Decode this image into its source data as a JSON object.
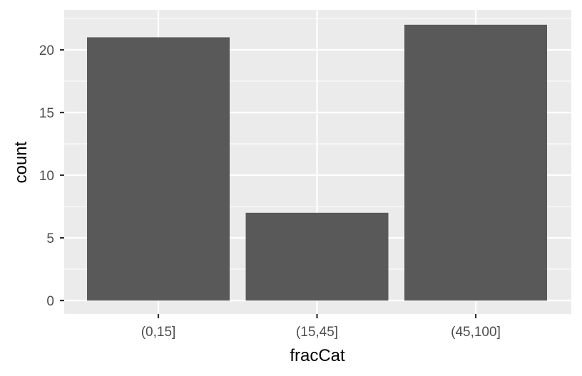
{
  "chart_data": {
    "type": "bar",
    "categories": [
      "(0,15]",
      "(15,45]",
      "(45,100]"
    ],
    "values": [
      21,
      7,
      22
    ],
    "xlabel": "fracCat",
    "ylabel": "count",
    "ylim": [
      0,
      23.1
    ],
    "yticks": [
      0,
      5,
      10,
      15,
      20
    ],
    "grid": true,
    "bar_color": "#595959",
    "panel_color": "#ebebeb",
    "grid_color": "#ffffff"
  }
}
